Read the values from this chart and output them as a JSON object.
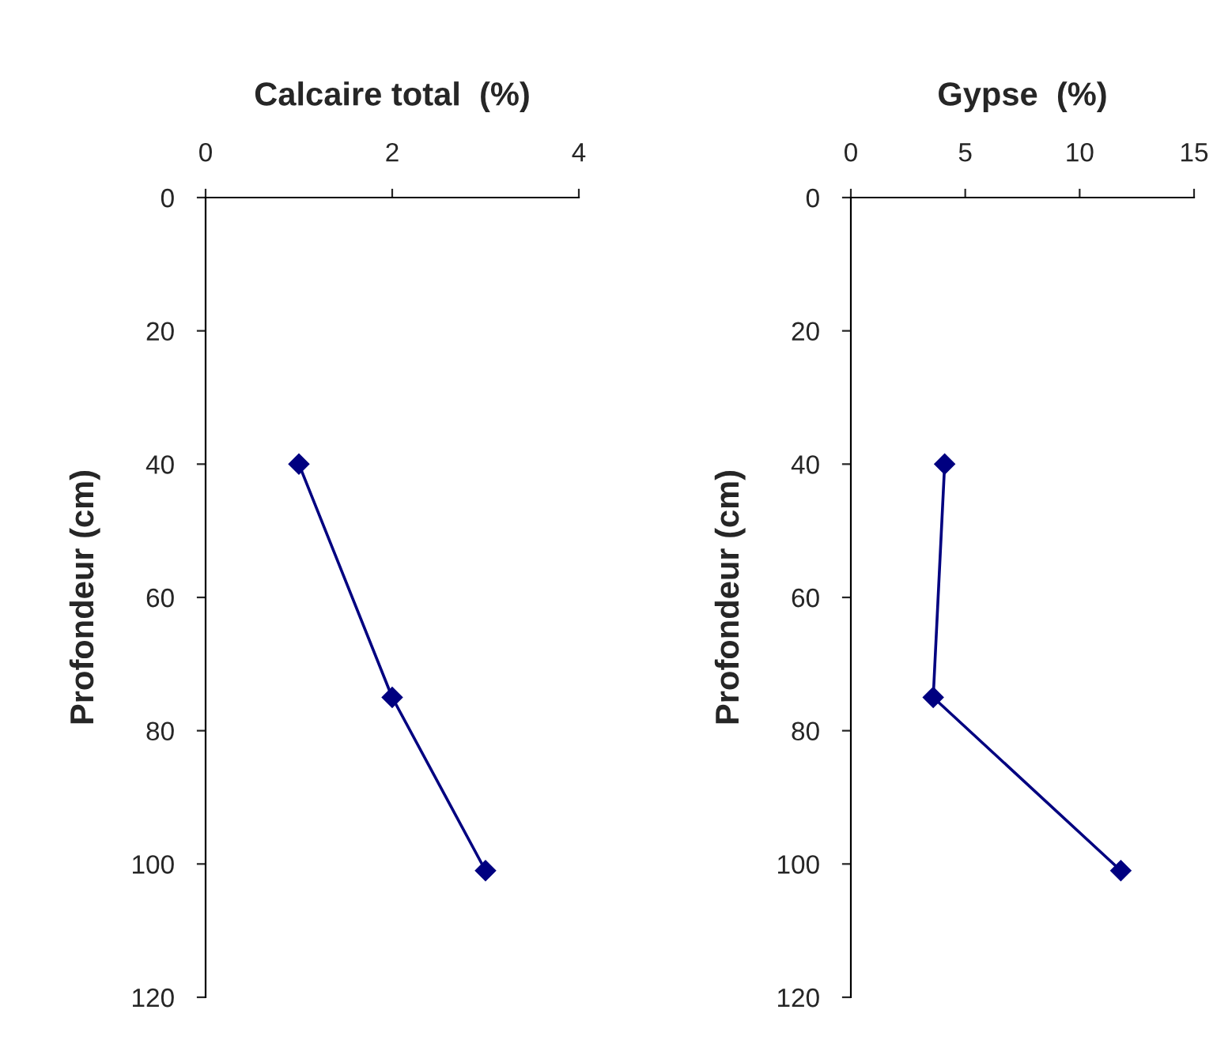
{
  "chart_data": [
    {
      "type": "line",
      "title": "Calcaire total  (%)",
      "ylabel": "Profondeur (cm)",
      "xlim": [
        0,
        4
      ],
      "xticks": [
        0,
        2,
        4
      ],
      "ylim": [
        120,
        0
      ],
      "yticks": [
        0,
        20,
        40,
        60,
        80,
        100,
        120
      ],
      "marker": "diamond",
      "grid": false,
      "legend": false,
      "series": [
        {
          "color": "#000080",
          "x": [
            1,
            2,
            3
          ],
          "values": [
            40,
            75,
            101
          ]
        }
      ]
    },
    {
      "type": "line",
      "title": "Gypse  (%)",
      "ylabel": "Profondeur (cm)",
      "xlim": [
        0,
        15
      ],
      "xticks": [
        0,
        5,
        10,
        15
      ],
      "ylim": [
        120,
        0
      ],
      "yticks": [
        0,
        20,
        40,
        60,
        80,
        100,
        120
      ],
      "marker": "diamond",
      "grid": false,
      "legend": false,
      "series": [
        {
          "color": "#000080",
          "x": [
            4.1,
            3.6,
            11.8
          ],
          "values": [
            40,
            75,
            101
          ]
        }
      ]
    }
  ]
}
